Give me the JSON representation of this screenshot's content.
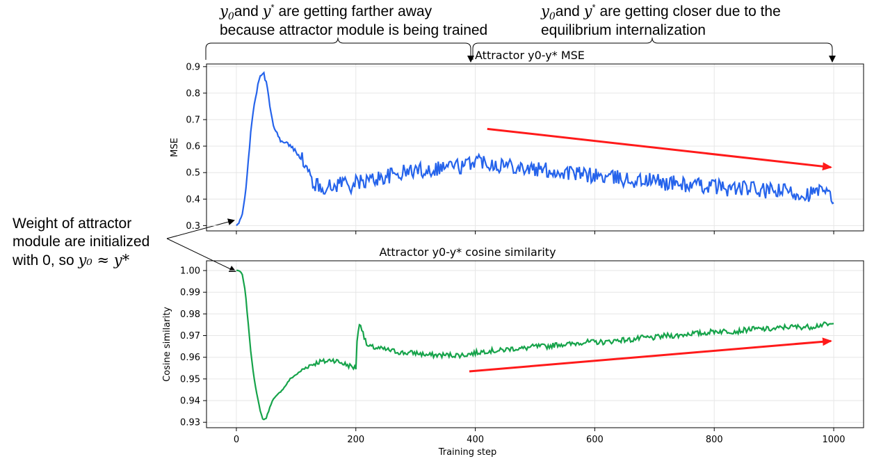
{
  "annotations": {
    "top_left_line1_var": "y",
    "top_left_line1_sub": "0",
    "top_left_line1_text": "and ",
    "top_left_line1_star": "y",
    "top_left_line1_tail": " are getting farther away",
    "top_left_line2": "because attractor module is being trained",
    "top_right_line1_tail": " are getting closer due to the",
    "top_right_line2": "equilibrium internalization",
    "left_line1": "Weight of attractor",
    "left_line2": "module are initialized",
    "left_line3_text": "with 0, so ",
    "left_line3_math": "y₀ ≈ y*"
  },
  "colors": {
    "mse_line": "#2563eb",
    "cos_line": "#16a34a",
    "trend_arrow": "#ff1a1a",
    "grid": "#e6e6e6"
  },
  "chart_data": [
    {
      "type": "line",
      "title": "Attractor y0-y* MSE",
      "xlabel": "",
      "ylabel": "MSE",
      "xlim": [
        -50,
        1050
      ],
      "ylim": [
        0.28,
        0.91
      ],
      "xticks": [
        0,
        200,
        400,
        600,
        800,
        1000
      ],
      "yticks": [
        0.3,
        0.4,
        0.5,
        0.6,
        0.7,
        0.8,
        0.9
      ],
      "ytick_labels": [
        "0.3",
        "0.4",
        "0.5",
        "0.6",
        "0.7",
        "0.8",
        "0.9"
      ],
      "grid": true,
      "x": [
        0,
        5,
        10,
        15,
        20,
        25,
        30,
        35,
        40,
        45,
        50,
        55,
        60,
        65,
        70,
        75,
        80,
        85,
        90,
        95,
        100,
        110,
        120,
        130,
        140,
        150,
        160,
        170,
        180,
        190,
        200,
        220,
        240,
        260,
        280,
        300,
        320,
        340,
        360,
        380,
        400,
        420,
        440,
        460,
        480,
        500,
        520,
        540,
        560,
        580,
        600,
        620,
        640,
        660,
        680,
        700,
        720,
        740,
        760,
        780,
        800,
        820,
        840,
        860,
        880,
        900,
        920,
        940,
        960,
        980,
        1000
      ],
      "y": [
        0.3,
        0.31,
        0.34,
        0.42,
        0.55,
        0.67,
        0.76,
        0.82,
        0.86,
        0.88,
        0.84,
        0.77,
        0.7,
        0.66,
        0.64,
        0.62,
        0.61,
        0.61,
        0.6,
        0.59,
        0.58,
        0.55,
        0.5,
        0.46,
        0.44,
        0.45,
        0.44,
        0.46,
        0.47,
        0.45,
        0.46,
        0.47,
        0.48,
        0.49,
        0.5,
        0.51,
        0.51,
        0.52,
        0.53,
        0.52,
        0.55,
        0.54,
        0.53,
        0.53,
        0.52,
        0.51,
        0.51,
        0.5,
        0.5,
        0.49,
        0.49,
        0.48,
        0.48,
        0.47,
        0.47,
        0.47,
        0.46,
        0.46,
        0.45,
        0.45,
        0.45,
        0.44,
        0.44,
        0.44,
        0.43,
        0.43,
        0.43,
        0.42,
        0.42,
        0.43,
        0.4
      ],
      "noise": 0.03,
      "trend_arrow": {
        "from": [
          420,
          0.665
        ],
        "to": [
          1000,
          0.52
        ]
      }
    },
    {
      "type": "line",
      "title": "Attractor y0-y* cosine similarity",
      "xlabel": "Training step",
      "ylabel": "Cosine similarity",
      "xlim": [
        -50,
        1050
      ],
      "ylim": [
        0.9275,
        1.0045
      ],
      "xticks": [
        0,
        200,
        400,
        600,
        800,
        1000
      ],
      "xtick_labels": [
        "0",
        "200",
        "400",
        "600",
        "800",
        "1000"
      ],
      "yticks": [
        0.93,
        0.94,
        0.95,
        0.96,
        0.97,
        0.98,
        0.99,
        1.0
      ],
      "ytick_labels": [
        "0.93",
        "0.94",
        "0.95",
        "0.96",
        "0.97",
        "0.98",
        "0.99",
        "1.00"
      ],
      "grid": true,
      "x": [
        0,
        5,
        10,
        15,
        20,
        25,
        30,
        35,
        40,
        45,
        50,
        55,
        60,
        70,
        80,
        90,
        100,
        110,
        120,
        130,
        140,
        150,
        160,
        170,
        180,
        190,
        200,
        202,
        205,
        208,
        212,
        215,
        220,
        240,
        260,
        280,
        300,
        320,
        340,
        360,
        380,
        400,
        420,
        440,
        460,
        480,
        500,
        520,
        540,
        560,
        580,
        600,
        620,
        640,
        660,
        680,
        700,
        720,
        740,
        760,
        780,
        800,
        820,
        840,
        860,
        880,
        900,
        920,
        940,
        960,
        980,
        1000
      ],
      "y": [
        1.0,
        1.0,
        0.998,
        0.99,
        0.975,
        0.96,
        0.95,
        0.942,
        0.935,
        0.931,
        0.932,
        0.936,
        0.94,
        0.943,
        0.946,
        0.95,
        0.952,
        0.954,
        0.956,
        0.957,
        0.958,
        0.958,
        0.959,
        0.958,
        0.957,
        0.956,
        0.955,
        0.968,
        0.974,
        0.975,
        0.972,
        0.968,
        0.965,
        0.964,
        0.963,
        0.962,
        0.962,
        0.961,
        0.961,
        0.961,
        0.961,
        0.962,
        0.963,
        0.963,
        0.964,
        0.964,
        0.965,
        0.965,
        0.966,
        0.966,
        0.967,
        0.967,
        0.967,
        0.968,
        0.968,
        0.969,
        0.969,
        0.97,
        0.97,
        0.971,
        0.971,
        0.972,
        0.972,
        0.972,
        0.973,
        0.973,
        0.973,
        0.974,
        0.974,
        0.974,
        0.975,
        0.975
      ],
      "noise": 0.0012,
      "trend_arrow": {
        "from": [
          390,
          0.9535
        ],
        "to": [
          1000,
          0.9675
        ]
      }
    }
  ]
}
